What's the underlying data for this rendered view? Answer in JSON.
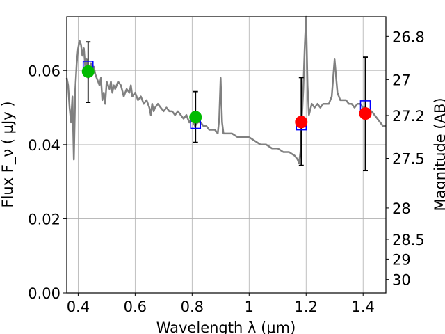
{
  "chart_data": {
    "type": "scatter",
    "title": "",
    "xlabel": "Wavelength  λ (μm)",
    "ylabel": "Flux  F_ν  ( μJy )",
    "ylabel_right": "Magnitude (AB)",
    "xlim": [
      0.36,
      1.48
    ],
    "ylim": [
      0.0,
      0.0745
    ],
    "grid": true,
    "x_ticks": [
      0.4,
      0.6,
      0.8,
      1.0,
      1.2,
      1.4
    ],
    "x_tick_labels": [
      "0.4",
      "0.6",
      "0.8",
      "1",
      "1.2",
      "1.4"
    ],
    "y_ticks": [
      0.0,
      0.02,
      0.04,
      0.06
    ],
    "y_tick_labels": [
      "0.00",
      "0.02",
      "0.04",
      "0.06"
    ],
    "right_ticks": [
      {
        "mag": 26.8,
        "label": "26.8"
      },
      {
        "mag": 27.0,
        "label": "27"
      },
      {
        "mag": 27.2,
        "label": "27.2"
      },
      {
        "mag": 27.5,
        "label": "27.5"
      },
      {
        "mag": 28.0,
        "label": "28"
      },
      {
        "mag": 28.5,
        "label": "28.5"
      },
      {
        "mag": 29.0,
        "label": "29"
      },
      {
        "mag": 30.0,
        "label": "30"
      }
    ],
    "spectrum": {
      "color": "#808080",
      "x": [
        0.36,
        0.365,
        0.37,
        0.375,
        0.38,
        0.385,
        0.39,
        0.395,
        0.4,
        0.405,
        0.41,
        0.415,
        0.42,
        0.425,
        0.43,
        0.435,
        0.44,
        0.445,
        0.45,
        0.455,
        0.46,
        0.465,
        0.47,
        0.475,
        0.48,
        0.485,
        0.49,
        0.495,
        0.5,
        0.505,
        0.51,
        0.515,
        0.52,
        0.525,
        0.53,
        0.54,
        0.55,
        0.56,
        0.57,
        0.58,
        0.585,
        0.59,
        0.6,
        0.61,
        0.62,
        0.63,
        0.64,
        0.65,
        0.655,
        0.66,
        0.665,
        0.67,
        0.68,
        0.69,
        0.7,
        0.71,
        0.72,
        0.73,
        0.74,
        0.75,
        0.76,
        0.77,
        0.78,
        0.79,
        0.8,
        0.81,
        0.82,
        0.83,
        0.84,
        0.85,
        0.86,
        0.87,
        0.88,
        0.89,
        0.895,
        0.9,
        0.905,
        0.91,
        0.92,
        0.94,
        0.96,
        0.98,
        1.0,
        1.02,
        1.04,
        1.06,
        1.08,
        1.1,
        1.12,
        1.14,
        1.16,
        1.17,
        1.175,
        1.18,
        1.185,
        1.19,
        1.195,
        1.2,
        1.205,
        1.21,
        1.22,
        1.23,
        1.24,
        1.25,
        1.26,
        1.27,
        1.28,
        1.29,
        1.3,
        1.31,
        1.32,
        1.33,
        1.34,
        1.35,
        1.36,
        1.37,
        1.38,
        1.39,
        1.4,
        1.41,
        1.42,
        1.43,
        1.44,
        1.45,
        1.46,
        1.47,
        1.48
      ],
      "y": [
        0.058,
        0.056,
        0.05,
        0.046,
        0.053,
        0.036,
        0.055,
        0.062,
        0.066,
        0.068,
        0.067,
        0.064,
        0.066,
        0.061,
        0.063,
        0.058,
        0.06,
        0.062,
        0.06,
        0.061,
        0.059,
        0.058,
        0.057,
        0.056,
        0.058,
        0.052,
        0.054,
        0.051,
        0.057,
        0.056,
        0.055,
        0.057,
        0.054,
        0.056,
        0.055,
        0.057,
        0.056,
        0.053,
        0.055,
        0.054,
        0.056,
        0.053,
        0.054,
        0.052,
        0.053,
        0.051,
        0.052,
        0.05,
        0.048,
        0.051,
        0.049,
        0.05,
        0.051,
        0.05,
        0.049,
        0.05,
        0.049,
        0.049,
        0.048,
        0.049,
        0.048,
        0.047,
        0.048,
        0.046,
        0.047,
        0.045,
        0.046,
        0.046,
        0.045,
        0.045,
        0.044,
        0.044,
        0.044,
        0.043,
        0.047,
        0.058,
        0.046,
        0.043,
        0.043,
        0.043,
        0.042,
        0.042,
        0.042,
        0.041,
        0.04,
        0.04,
        0.039,
        0.039,
        0.038,
        0.038,
        0.037,
        0.036,
        0.035,
        0.038,
        0.047,
        0.055,
        0.066,
        0.0745,
        0.056,
        0.048,
        0.051,
        0.05,
        0.051,
        0.05,
        0.051,
        0.051,
        0.051,
        0.053,
        0.063,
        0.054,
        0.052,
        0.052,
        0.052,
        0.051,
        0.051,
        0.05,
        0.051,
        0.051,
        0.05,
        0.05,
        0.049,
        0.049,
        0.048,
        0.047,
        0.046,
        0.045,
        0.045
      ]
    },
    "model_points": {
      "marker": "open-square",
      "color": "#0000ff",
      "x": [
        0.435,
        0.812,
        1.183,
        1.408
      ],
      "y": [
        0.0612,
        0.0457,
        0.0453,
        0.0505
      ]
    },
    "observed_points": {
      "x": [
        0.435,
        0.812,
        1.183,
        1.408
      ],
      "y": [
        0.0597,
        0.0474,
        0.0461,
        0.0484
      ],
      "yerr_low": [
        0.0514,
        0.0406,
        0.0344,
        0.033
      ],
      "yerr_high": [
        0.0677,
        0.0543,
        0.0581,
        0.0636
      ],
      "colors": [
        "#00bb00",
        "#00bb00",
        "#ff0000",
        "#ff0000"
      ]
    }
  }
}
